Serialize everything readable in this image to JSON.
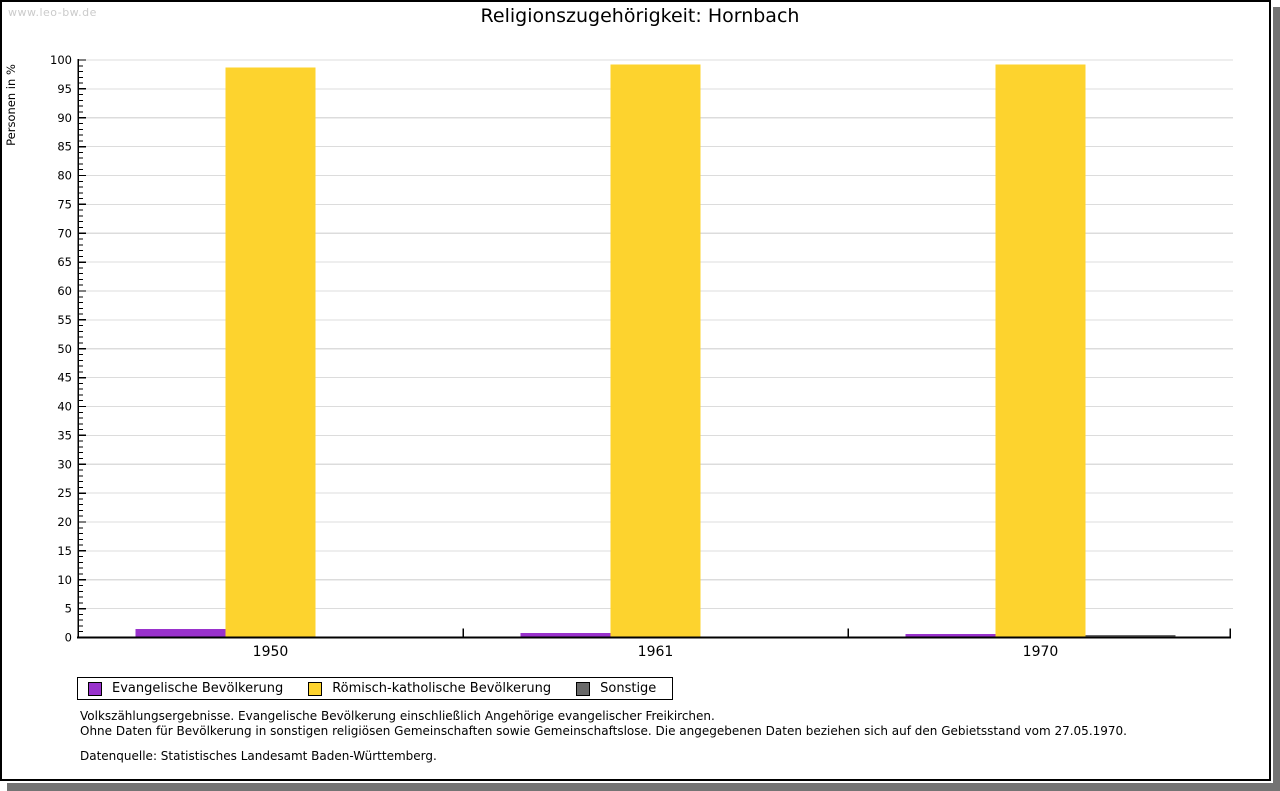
{
  "header": {
    "watermark": "www.leo-bw.de",
    "title": "Religionszugehörigkeit: Hornbach"
  },
  "chart_data": {
    "type": "bar",
    "title": "Religionszugehörigkeit: Hornbach",
    "xlabel": "",
    "ylabel": "Personen in %",
    "categories": [
      "1950",
      "1961",
      "1970"
    ],
    "series": [
      {
        "name": "Evangelische Bevölkerung",
        "color": "#9932CC",
        "values": [
          1.5,
          0.8,
          0.6
        ]
      },
      {
        "name": "Römisch-katholische Bevölkerung",
        "color": "#FDD32E",
        "values": [
          98.7,
          99.2,
          99.2
        ]
      },
      {
        "name": "Sonstige",
        "color": "#696969",
        "values": [
          0,
          0,
          0.4
        ]
      }
    ],
    "ylim": [
      0,
      100
    ],
    "ytick_step": 5,
    "yminor_step": 1,
    "grid": true,
    "legend_position": "bottom-left"
  },
  "footer": {
    "lines": [
      "Volkszählungsergebnisse. Evangelische Bevölkerung einschließlich Angehörige evangelischer Freikirchen.",
      "Ohne Daten für Bevölkerung in sonstigen religiösen Gemeinschaften sowie Gemeinschaftslose. Die angegebenen Daten beziehen sich auf den Gebietsstand vom 27.05.1970.",
      "Datenquelle: Statistisches Landesamt Baden-Württemberg."
    ]
  },
  "colors": {
    "evangelisch": "#9932CC",
    "katholisch": "#FDD32E",
    "sonstige": "#696969",
    "gridline": "#DCDCDC",
    "axis": "#000000",
    "watermark": "#CBCBCB",
    "frame_shadow": "#747474"
  }
}
